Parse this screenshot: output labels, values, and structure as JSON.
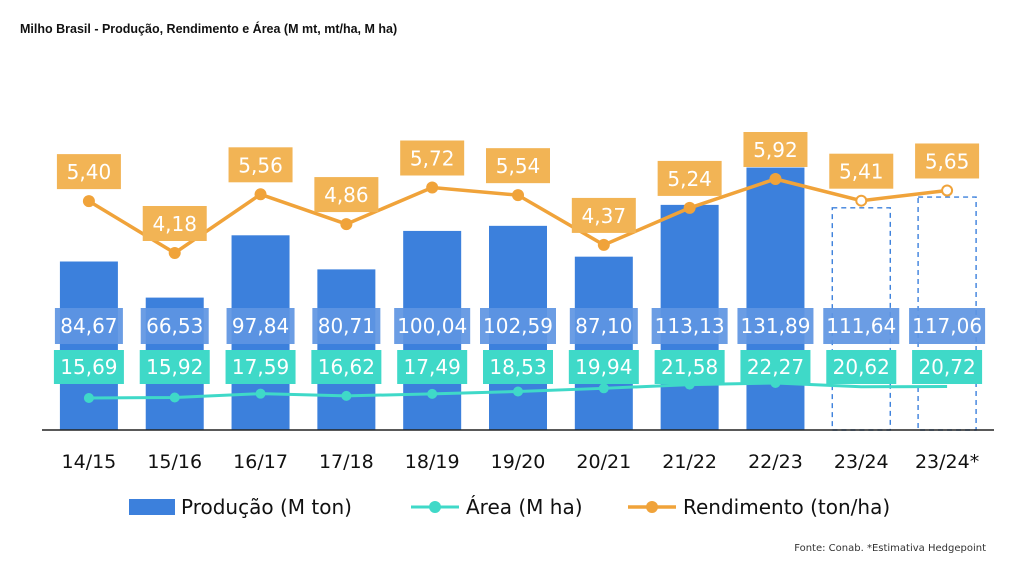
{
  "title": "Milho Brasil - Produção, Rendimento e Área (M mt, mt/ha, M ha)",
  "source": "Fonte: Conab. *Estimativa Hedgepoint",
  "colors": {
    "production": "#3C80DC",
    "production_label_bg": "#5E95E2",
    "area": "#3FD9C8",
    "yield": "#F0A33A",
    "yield_label_bg": "#F2B455",
    "axis": "#222222",
    "dashed": "#3C80DC"
  },
  "chart_data": {
    "type": "bar",
    "categories": [
      "14/15",
      "15/16",
      "16/17",
      "17/18",
      "18/19",
      "19/20",
      "20/21",
      "21/22",
      "22/23",
      "23/24",
      "23/24*"
    ],
    "estimated_categories": [
      "23/24",
      "23/24*"
    ],
    "series": [
      {
        "name": "Produção (M ton)",
        "type": "bar",
        "values": [
          84.67,
          66.53,
          97.84,
          80.71,
          100.04,
          102.59,
          87.1,
          113.13,
          131.89,
          111.64,
          117.06
        ],
        "labels": [
          "84,67",
          "66,53",
          "97,84",
          "80,71",
          "100,04",
          "102,59",
          "87,10",
          "113,13",
          "131,89",
          "111,64",
          "117,06"
        ]
      },
      {
        "name": "Área (M ha)",
        "type": "line",
        "values": [
          15.69,
          15.92,
          17.59,
          16.62,
          17.49,
          18.53,
          19.94,
          21.58,
          22.27,
          20.62,
          20.72
        ],
        "labels": [
          "15,69",
          "15,92",
          "17,59",
          "16,62",
          "17,49",
          "18,53",
          "19,94",
          "21,58",
          "22,27",
          "20,62",
          "20,72"
        ]
      },
      {
        "name": "Rendimento (ton/ha)",
        "type": "line",
        "values": [
          5.4,
          4.18,
          5.56,
          4.86,
          5.72,
          5.54,
          4.37,
          5.24,
          5.92,
          5.41,
          5.65
        ],
        "labels": [
          "5,40",
          "4,18",
          "5,56",
          "4,86",
          "5,72",
          "5,54",
          "4,37",
          "5,24",
          "5,92",
          "5,41",
          "5,65"
        ]
      }
    ],
    "legend_position": "bottom",
    "grid": false
  }
}
